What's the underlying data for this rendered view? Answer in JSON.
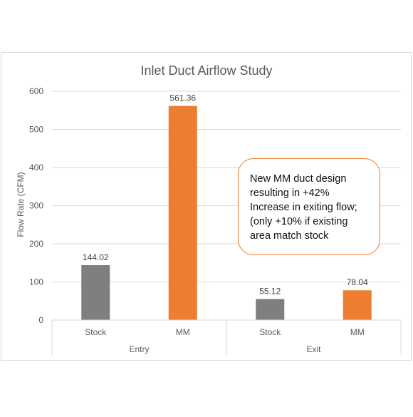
{
  "chart_data": {
    "type": "bar",
    "title": "Inlet Duct Airflow Study",
    "xlabel": "",
    "ylabel": "Flow Rate (CFM)",
    "ylim": [
      0,
      600
    ],
    "yticks": [
      0,
      100,
      200,
      300,
      400,
      500,
      600
    ],
    "grid": true,
    "groups": [
      {
        "label": "Entry",
        "categories": [
          "Stock",
          "MM"
        ]
      },
      {
        "label": "Exit",
        "categories": [
          "Stock",
          "MM"
        ]
      }
    ],
    "categories": [
      "Stock",
      "MM",
      "Stock",
      "MM"
    ],
    "values": [
      144.02,
      561.36,
      55.12,
      78.04
    ],
    "data_labels": [
      "144.02",
      "561.36",
      "55.12",
      "78.04"
    ],
    "bar_colors": [
      "#7F7F7F",
      "#ED7D31",
      "#7F7F7F",
      "#ED7D31"
    ],
    "annotation": "New MM duct design resulting in +42% Increase in exiting flow; (only +10% if existing area match stock"
  },
  "callout_lines": "New MM duct design\nresulting in +42%\nIncrease in exiting flow;\n(only +10% if existing\narea match stock"
}
